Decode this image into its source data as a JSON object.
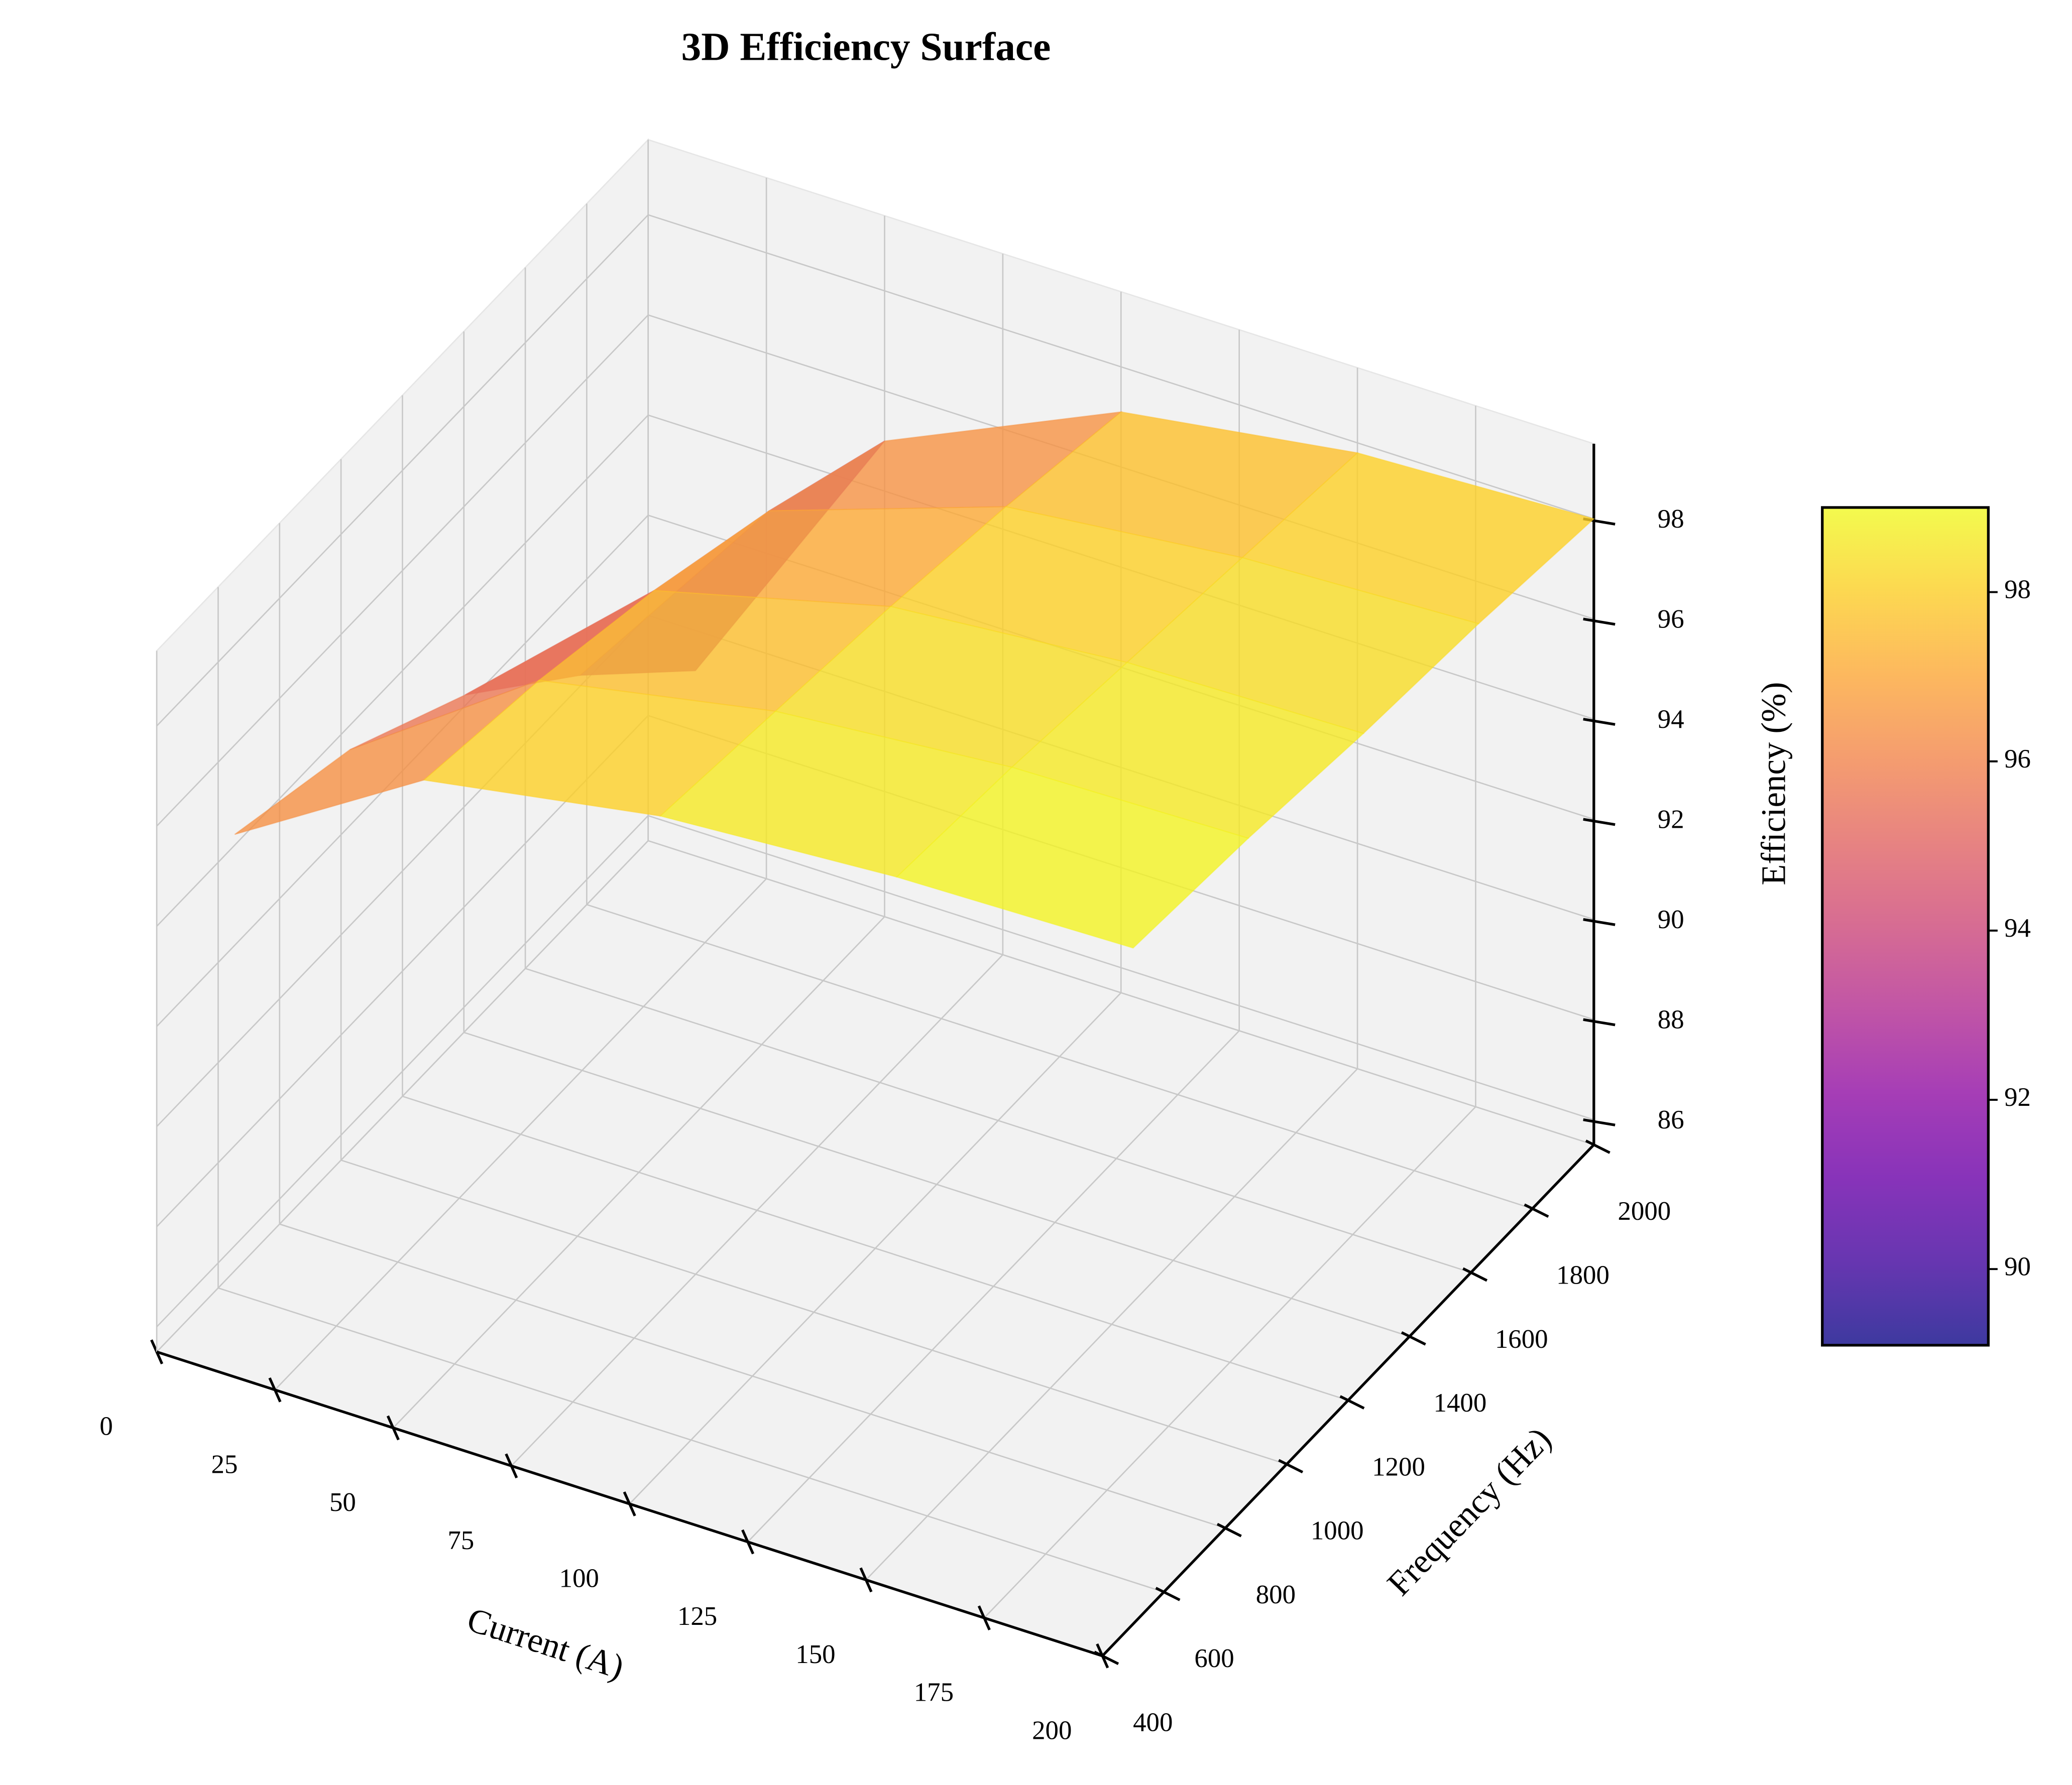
{
  "chart_data": {
    "type": "surface3d",
    "title": "3D Efficiency Surface",
    "xlabel": "Current (A)",
    "ylabel": "Frequency (Hz)",
    "zlabel": "Efficiency (%)",
    "x": [
      10,
      50,
      100,
      150,
      200
    ],
    "y": [
      500,
      875,
      1250,
      1625,
      2000
    ],
    "z": [
      [
        95.5,
        97.8,
        98.6,
        98.9,
        99.0
      ],
      [
        94.8,
        97.4,
        98.3,
        98.7,
        98.8
      ],
      [
        93.5,
        96.8,
        98.0,
        98.4,
        98.5
      ],
      [
        91.5,
        96.0,
        97.6,
        98.1,
        98.3
      ],
      [
        89.2,
        95.0,
        97.1,
        97.8,
        98.0
      ]
    ],
    "xlim": [
      0,
      200
    ],
    "ylim": [
      400,
      2000
    ],
    "zlim": [
      85.5,
      99.5
    ],
    "xticks": [
      0,
      25,
      50,
      75,
      100,
      125,
      150,
      175,
      200
    ],
    "yticks": [
      400,
      600,
      800,
      1000,
      1200,
      1400,
      1600,
      1800,
      2000
    ],
    "zticks": [
      86,
      88,
      90,
      92,
      94,
      96,
      98
    ],
    "colormap": "plasma",
    "alpha": 0.8,
    "grid": true,
    "colorbar": {
      "lim": [
        89.1,
        99.0
      ],
      "ticks": [
        90,
        92,
        94,
        96,
        98
      ]
    }
  }
}
